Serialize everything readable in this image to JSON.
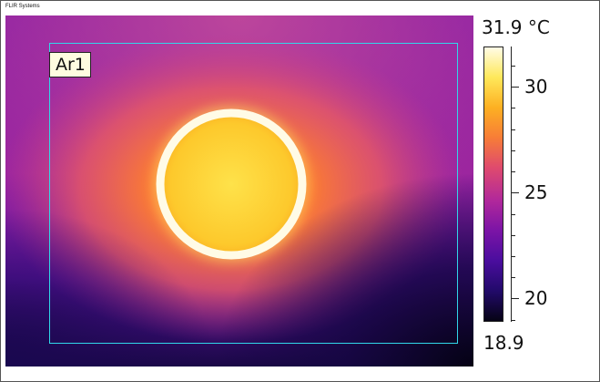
{
  "brand": "FLIR Systems",
  "roi_label": "Ar1",
  "scale": {
    "max_label": "31.9 °C",
    "min_label": "18.9",
    "max": 31.9,
    "min": 18.9,
    "major_ticks": [
      {
        "value": 30,
        "label": "30"
      },
      {
        "value": 25,
        "label": "25"
      },
      {
        "value": 20,
        "label": "20"
      }
    ],
    "minor_ticks": [
      31,
      29,
      28,
      27,
      26,
      24,
      23,
      22,
      21,
      19
    ],
    "palette": [
      "#060314",
      "#220a6a",
      "#4a0d9e",
      "#7b14a6",
      "#b1289b",
      "#df4a6e",
      "#f77d37",
      "#fdb022",
      "#fee85a",
      "#fffce6"
    ]
  },
  "colors": {
    "roi_border": "#31d7ea",
    "roi_label_bg": "#fffce0"
  }
}
